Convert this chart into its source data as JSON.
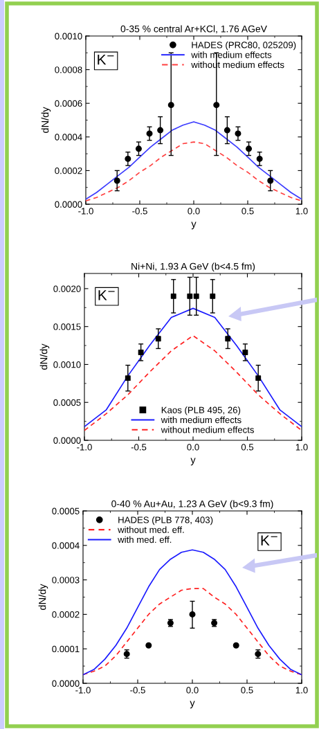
{
  "chart_data": [
    {
      "type": "line",
      "title": "0-35 % central Ar+KCl, 1.76 AGeV",
      "xlabel": "y",
      "ylabel": "dN/dy",
      "annotations": [
        "K$^{−}$"
      ],
      "xlim": [
        -1.0,
        1.0
      ],
      "ylim": [
        0.0,
        0.001
      ],
      "xticks": [
        {
          "value": -1.0,
          "label": "-1.0"
        },
        {
          "value": -0.5,
          "label": "-0.5"
        },
        {
          "value": 0.0,
          "label": "0.0"
        },
        {
          "value": 0.5,
          "label": "0.5"
        },
        {
          "value": 1.0,
          "label": "1.0"
        }
      ],
      "yticks": [
        {
          "value": 0.0,
          "label": "0.0000"
        },
        {
          "value": 0.0002,
          "label": "0.0002"
        },
        {
          "value": 0.0004,
          "label": "0.0004"
        },
        {
          "value": 0.0006,
          "label": "0.0006"
        },
        {
          "value": 0.0008,
          "label": "0.0008"
        },
        {
          "value": 0.001,
          "label": "0.0010"
        }
      ],
      "legend": "top right",
      "grid": false,
      "series": [
        {
          "name": "HADES (PRC80, 025209)",
          "type": "scatter",
          "marker": "circle",
          "color": "#000000",
          "x": [
            -0.71,
            -0.61,
            -0.51,
            -0.41,
            -0.31,
            -0.21,
            0.21,
            0.31,
            0.41,
            0.51,
            0.61,
            0.71
          ],
          "values": [
            0.00014,
            0.00027,
            0.00033,
            0.00042,
            0.00044,
            0.00059,
            0.00059,
            0.00044,
            0.00042,
            0.00033,
            0.00027,
            0.00014
          ],
          "errors": [
            6e-05,
            4e-05,
            4e-05,
            4e-05,
            [
              0.00036,
              0.00052
            ],
            [
              0.00029,
              0.0009
            ],
            [
              0.00029,
              0.0009
            ],
            [
              0.00036,
              0.00052
            ],
            4e-05,
            4e-05,
            4e-05,
            6e-05
          ]
        },
        {
          "name": "with medium effects",
          "line_style": "solid",
          "color": "#3b3bff",
          "x": [
            -1.0,
            -0.9,
            -0.8,
            -0.7,
            -0.6,
            -0.5,
            -0.4,
            -0.3,
            -0.2,
            -0.1,
            0.0,
            0.1,
            0.2,
            0.3,
            0.4,
            0.5,
            0.6,
            0.7,
            0.8,
            0.9,
            1.0
          ],
          "values": [
            3e-05,
            7e-05,
            0.00012,
            0.00017,
            0.00022,
            0.00028,
            0.00034,
            0.00039,
            0.00044,
            0.00047,
            0.00049,
            0.00047,
            0.00044,
            0.00039,
            0.00034,
            0.00028,
            0.00022,
            0.00017,
            0.00012,
            7e-05,
            3e-05
          ]
        },
        {
          "name": "without medium effects",
          "line_style": "dashed",
          "color": "#ff4040",
          "x": [
            -1.0,
            -0.9,
            -0.8,
            -0.7,
            -0.6,
            -0.5,
            -0.4,
            -0.3,
            -0.2,
            -0.1,
            0.0,
            0.1,
            0.2,
            0.3,
            0.4,
            0.5,
            0.6,
            0.7,
            0.8,
            0.9,
            1.0
          ],
          "values": [
            2e-05,
            4e-05,
            7e-05,
            0.0001,
            0.00014,
            0.00019,
            0.00023,
            0.00028,
            0.00032,
            0.00036,
            0.00037,
            0.00036,
            0.00032,
            0.00028,
            0.00023,
            0.00019,
            0.00014,
            0.0001,
            7e-05,
            4e-05,
            2e-05
          ]
        }
      ]
    },
    {
      "type": "line",
      "title": "Ni+Ni, 1.93 A GeV (b<4.5 fm)",
      "xlabel": "y",
      "ylabel": "dN/dy",
      "annotations": [
        "K$^{−}$"
      ],
      "xlim": [
        -1.0,
        1.0
      ],
      "ylim": [
        0.0,
        0.0022
      ],
      "xticks": [
        {
          "value": -1.0,
          "label": "-1.0"
        },
        {
          "value": -0.5,
          "label": "-0.5"
        },
        {
          "value": 0.0,
          "label": "0.0"
        },
        {
          "value": 0.5,
          "label": "0.5"
        },
        {
          "value": 1.0,
          "label": "1.0"
        }
      ],
      "yticks": [
        {
          "value": 0.0,
          "label": "0.0000"
        },
        {
          "value": 0.0005,
          "label": "0.0005"
        },
        {
          "value": 0.001,
          "label": "0.0010"
        },
        {
          "value": 0.0015,
          "label": "0.0015"
        },
        {
          "value": 0.002,
          "label": "0.0020"
        }
      ],
      "legend": "bottom",
      "grid": false,
      "series": [
        {
          "name": "Kaos (PLB 495, 26)",
          "type": "scatter",
          "marker": "square",
          "color": "#000000",
          "x": [
            -0.6,
            -0.48,
            -0.32,
            -0.18,
            -0.03,
            0.03,
            0.18,
            0.32,
            0.48,
            0.6
          ],
          "values": [
            0.00082,
            0.00116,
            0.00134,
            0.0019,
            0.0019,
            0.0019,
            0.0019,
            0.00134,
            0.00116,
            0.00082
          ],
          "errors": [
            0.00017,
            0.00011,
            0.00013,
            0.00022,
            0.00025,
            0.00025,
            0.00022,
            0.00013,
            0.00011,
            0.00017
          ]
        },
        {
          "name": "with medium effects",
          "line_style": "solid",
          "color": "#1a1aff",
          "x": [
            -1.0,
            -0.8,
            -0.6,
            -0.4,
            -0.2,
            0.0,
            0.2,
            0.4,
            0.6,
            0.8,
            1.0
          ],
          "values": [
            0.00018,
            0.0004,
            0.00085,
            0.00125,
            0.00162,
            0.00174,
            0.00162,
            0.00125,
            0.00085,
            0.0004,
            0.00018
          ]
        },
        {
          "name": "without medium effects",
          "line_style": "dashed",
          "color": "#ff2020",
          "x": [
            -1.0,
            -0.8,
            -0.6,
            -0.4,
            -0.2,
            0.0,
            0.2,
            0.4,
            0.6,
            0.8,
            1.0
          ],
          "values": [
            0.00013,
            0.00035,
            0.0006,
            0.0009,
            0.00118,
            0.00138,
            0.00118,
            0.0009,
            0.0006,
            0.00035,
            0.00013
          ]
        }
      ]
    },
    {
      "type": "line",
      "title": "0-40 % Au+Au, 1.23 A GeV (b<9.3 fm)",
      "xlabel": "y",
      "ylabel": "dN/dy",
      "annotations": [
        "K$^{−}$"
      ],
      "xlim": [
        -1.0,
        1.0
      ],
      "ylim": [
        0.0,
        0.0005
      ],
      "xticks": [
        {
          "value": -1.0,
          "label": "-1.0"
        },
        {
          "value": -0.5,
          "label": "-0.5"
        },
        {
          "value": 0.0,
          "label": "0.0"
        },
        {
          "value": 0.5,
          "label": "0.5"
        },
        {
          "value": 1.0,
          "label": "1.0"
        }
      ],
      "yticks": [
        {
          "value": 0.0,
          "label": "0.0000"
        },
        {
          "value": 0.0001,
          "label": "0.0001"
        },
        {
          "value": 0.0002,
          "label": "0.0002"
        },
        {
          "value": 0.0003,
          "label": "0.0003"
        },
        {
          "value": 0.0004,
          "label": "0.0004"
        },
        {
          "value": 0.0005,
          "label": "0.0005"
        }
      ],
      "legend": "top left",
      "grid": false,
      "series": [
        {
          "name": "HADES (PLB 778, 403)",
          "type": "scatter",
          "marker": "circle",
          "color": "#000000",
          "x": [
            -0.6,
            -0.4,
            -0.2,
            0.0,
            0.2,
            0.4,
            0.6
          ],
          "values": [
            8.5e-05,
            0.00011,
            0.000175,
            0.0002,
            0.000175,
            0.00011,
            8.5e-05
          ],
          "errors": [
            1.2e-05,
            null,
            1e-05,
            [
              0.00016,
              0.000238
            ],
            1e-05,
            null,
            1.2e-05
          ]
        },
        {
          "name": "without med. eff.",
          "line_style": "dashed",
          "color": "#ff2020",
          "x": [
            -1.0,
            -0.9,
            -0.8,
            -0.7,
            -0.6,
            -0.5,
            -0.4,
            -0.3,
            -0.2,
            -0.1,
            0.0,
            0.1,
            0.2,
            0.3,
            0.4,
            0.5,
            0.6,
            0.7,
            0.8,
            0.9,
            1.0
          ],
          "values": [
            2.5e-05,
            3.5e-05,
            5e-05,
            8e-05,
            0.00012,
            0.00016,
            0.0002,
            0.00023,
            0.00025,
            0.00027,
            0.000275,
            0.000275,
            0.00025,
            0.00023,
            0.0002,
            0.00016,
            0.00012,
            8e-05,
            5e-05,
            3.5e-05,
            2.5e-05
          ]
        },
        {
          "name": "with med. eff.",
          "line_style": "solid",
          "color": "#1a1aff",
          "x": [
            -1.0,
            -0.9,
            -0.8,
            -0.7,
            -0.6,
            -0.5,
            -0.4,
            -0.3,
            -0.2,
            -0.1,
            0.0,
            0.1,
            0.2,
            0.3,
            0.4,
            0.5,
            0.6,
            0.7,
            0.8,
            0.9,
            1.0
          ],
          "values": [
            2.5e-05,
            4e-05,
            7e-05,
            0.00011,
            0.00016,
            0.00022,
            0.00028,
            0.00033,
            0.00036,
            0.00038,
            0.000387,
            0.00038,
            0.00036,
            0.00033,
            0.00028,
            0.00022,
            0.00016,
            0.00011,
            7e-05,
            4e-05,
            2.5e-05
          ]
        }
      ]
    }
  ]
}
